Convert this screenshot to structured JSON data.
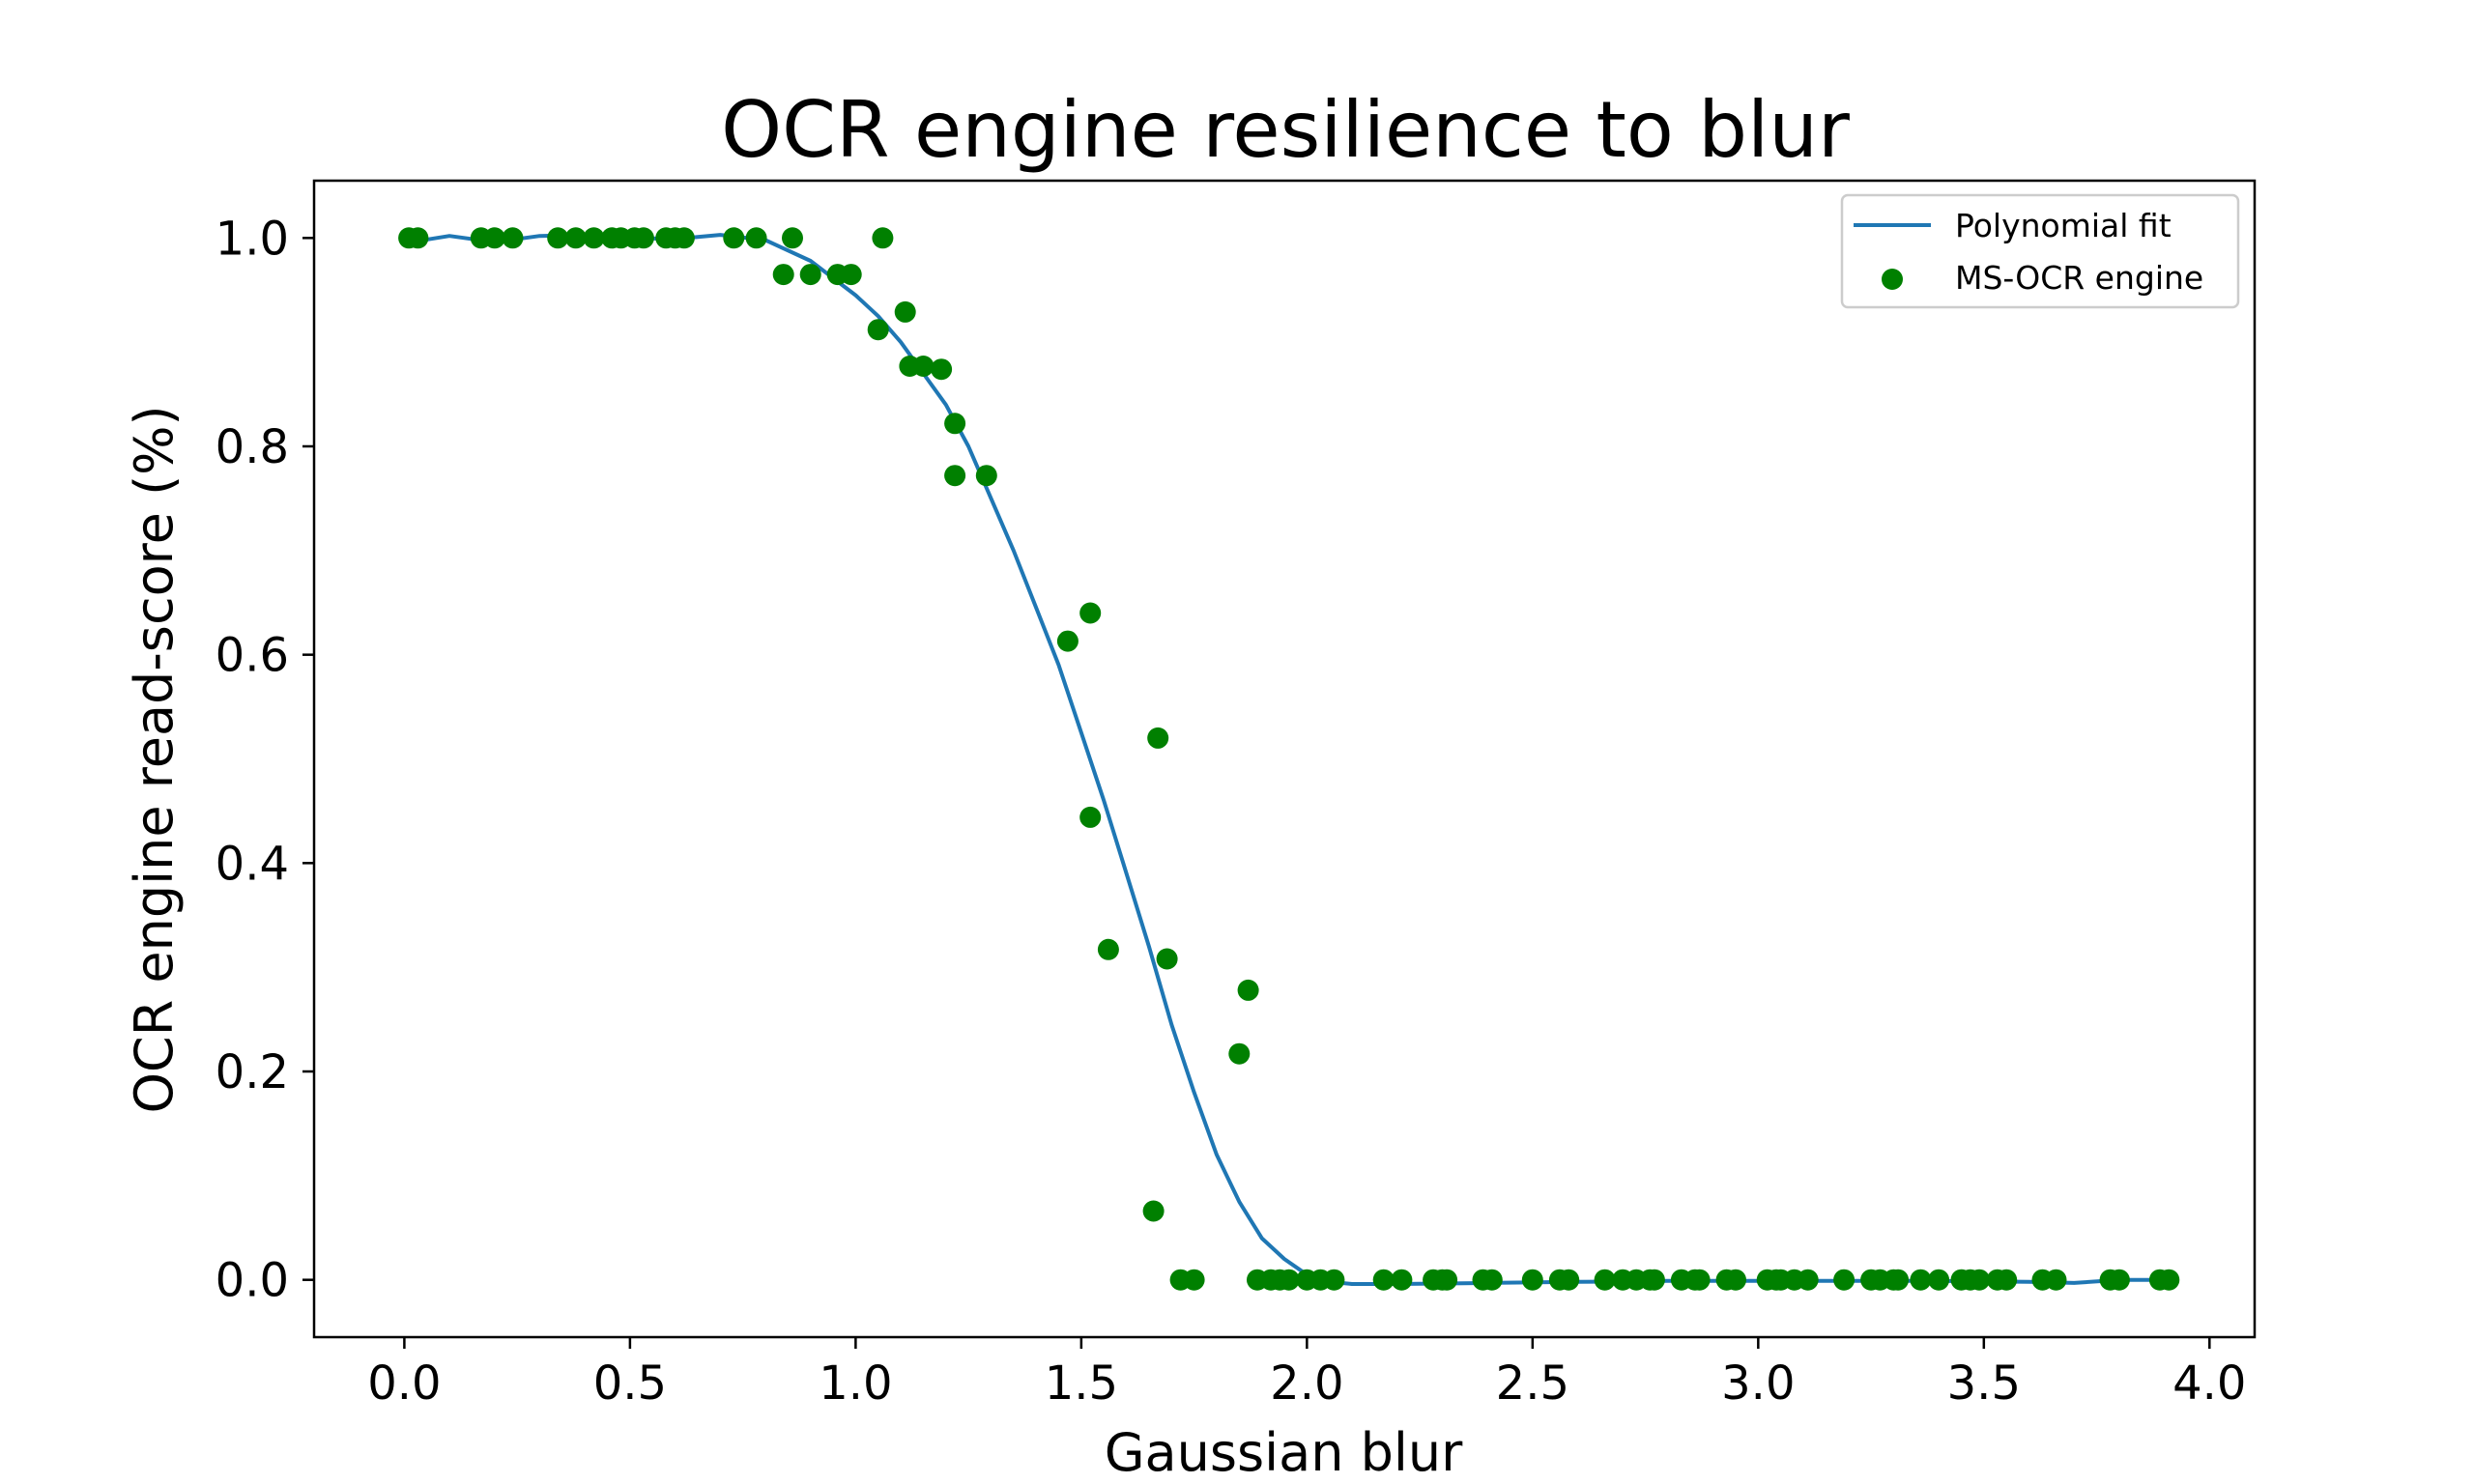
{
  "chart_data": {
    "type": "scatter",
    "title": "OCR engine resilience to blur",
    "xlabel": "Gaussian blur",
    "ylabel": "OCR engine read-score (%)",
    "xlim": [
      -0.2,
      4.1
    ],
    "ylim": [
      -0.055,
      1.055
    ],
    "x_ticks": [
      0.0,
      0.5,
      1.0,
      1.5,
      2.0,
      2.5,
      3.0,
      3.5,
      4.0
    ],
    "x_tick_labels": [
      "0.0",
      "0.5",
      "1.0",
      "1.5",
      "2.0",
      "2.5",
      "3.0",
      "3.5",
      "4.0"
    ],
    "y_ticks": [
      0.0,
      0.2,
      0.4,
      0.6,
      0.8,
      1.0
    ],
    "y_tick_labels": [
      "0.0",
      "0.2",
      "0.4",
      "0.6",
      "0.8",
      "1.0"
    ],
    "grid": false,
    "legend_position": "top-right",
    "series": [
      {
        "name": "Polynomial fit",
        "type": "line",
        "color": "#1f77b4",
        "x": [
          0.0,
          0.1,
          0.2,
          0.3,
          0.4,
          0.5,
          0.6,
          0.7,
          0.8,
          0.9,
          1.0,
          1.05,
          1.1,
          1.15,
          1.2,
          1.25,
          1.3,
          1.35,
          1.4,
          1.45,
          1.5,
          1.55,
          1.6,
          1.65,
          1.7,
          1.75,
          1.8,
          1.85,
          1.9,
          1.95,
          2.0,
          2.05,
          2.1,
          2.2,
          2.4,
          2.6,
          2.8,
          3.0,
          3.2,
          3.4,
          3.6,
          3.7,
          3.8,
          3.9
        ],
        "y": [
          0.995,
          1.002,
          0.996,
          1.002,
          1.003,
          1.0,
          0.999,
          1.003,
          0.998,
          0.978,
          0.945,
          0.925,
          0.9,
          0.87,
          0.84,
          0.8,
          0.75,
          0.7,
          0.645,
          0.59,
          0.525,
          0.46,
          0.39,
          0.32,
          0.245,
          0.18,
          0.12,
          0.075,
          0.04,
          0.02,
          0.005,
          -0.002,
          -0.004,
          -0.004,
          -0.003,
          -0.002,
          -0.001,
          -0.001,
          -0.001,
          -0.001,
          -0.002,
          -0.003,
          0.0,
          0.0
        ]
      },
      {
        "name": "MS-OCR engine",
        "type": "scatter",
        "color": "#008000",
        "x": [
          0.01,
          0.03,
          0.17,
          0.2,
          0.24,
          0.34,
          0.38,
          0.42,
          0.46,
          0.48,
          0.51,
          0.53,
          0.58,
          0.6,
          0.62,
          0.73,
          0.78,
          0.84,
          0.86,
          0.9,
          0.96,
          0.99,
          1.05,
          1.06,
          1.11,
          1.12,
          1.15,
          1.19,
          1.22,
          1.22,
          1.29,
          1.47,
          1.52,
          1.52,
          1.56,
          1.66,
          1.67,
          1.69,
          1.72,
          1.75,
          1.85,
          1.87,
          1.89,
          1.92,
          1.94,
          1.96,
          2.0,
          2.03,
          2.06,
          2.17,
          2.21,
          2.28,
          2.3,
          2.31,
          2.39,
          2.41,
          2.5,
          2.56,
          2.58,
          2.66,
          2.7,
          2.73,
          2.76,
          2.77,
          2.83,
          2.86,
          2.87,
          2.93,
          2.95,
          3.02,
          3.04,
          3.05,
          3.08,
          3.11,
          3.19,
          3.25,
          3.27,
          3.3,
          3.31,
          3.36,
          3.4,
          3.45,
          3.47,
          3.49,
          3.53,
          3.55,
          3.63,
          3.66,
          3.78,
          3.8,
          3.89,
          3.91
        ],
        "y": [
          1.0,
          1.0,
          1.0,
          1.0,
          1.0,
          1.0,
          1.0,
          1.0,
          1.0,
          1.0,
          1.0,
          1.0,
          1.0,
          1.0,
          1.0,
          1.0,
          1.0,
          0.965,
          1.0,
          0.965,
          0.965,
          0.965,
          0.912,
          1.0,
          0.929,
          0.877,
          0.877,
          0.874,
          0.822,
          0.772,
          0.772,
          0.613,
          0.444,
          0.64,
          0.317,
          0.066,
          0.52,
          0.308,
          0.0,
          0.0,
          0.217,
          0.278,
          0.0,
          0.0,
          0.0,
          0.0,
          0.0,
          0.0,
          0.0,
          0.0,
          0.0,
          0.0,
          0.0,
          0.0,
          0.0,
          0.0,
          0.0,
          0.0,
          0.0,
          0.0,
          0.0,
          0.0,
          0.0,
          0.0,
          0.0,
          0.0,
          0.0,
          0.0,
          0.0,
          0.0,
          0.0,
          0.0,
          0.0,
          0.0,
          0.0,
          0.0,
          0.0,
          0.0,
          0.0,
          0.0,
          0.0,
          0.0,
          0.0,
          0.0,
          0.0,
          0.0,
          0.0,
          0.0,
          0.0,
          0.0,
          0.0,
          0.0
        ]
      }
    ]
  }
}
